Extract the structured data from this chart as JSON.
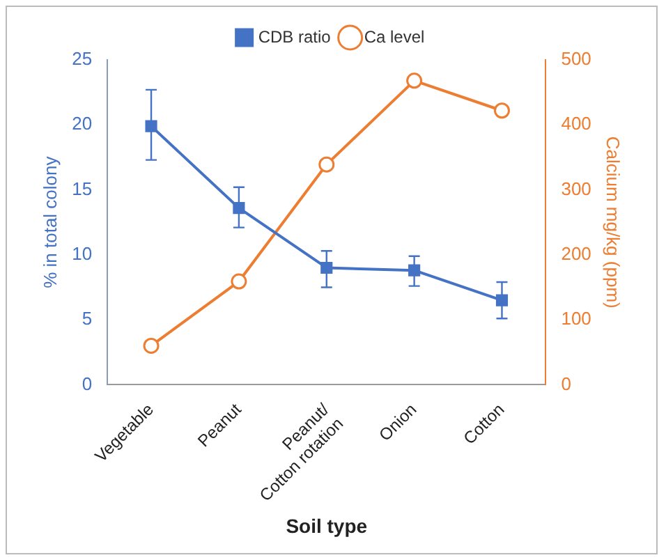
{
  "chart_data": {
    "type": "line",
    "xlabel": "Soil type",
    "ylabel": "% in total colony",
    "y2label": "Calcium mg/kg (ppm)",
    "categories": [
      "Vegetable",
      "Peanut",
      "Peanut/ Cotton rotation",
      "Onion",
      "Cotton"
    ],
    "series": [
      {
        "name": "CDB ratio",
        "color": "#4472c4",
        "marker": "square",
        "values": [
          19.9,
          13.6,
          9.0,
          8.8,
          6.5
        ],
        "errors": [
          [
            17.3,
            22.7
          ],
          [
            12.1,
            15.2
          ],
          [
            7.5,
            10.3
          ],
          [
            7.6,
            9.9
          ],
          [
            5.1,
            7.9
          ]
        ]
      },
      {
        "name": "Ca level",
        "color": "#ed7d31",
        "marker": "circle",
        "axis": "y2",
        "values": [
          60,
          159,
          339,
          468,
          422
        ]
      }
    ],
    "ylim": [
      0,
      25
    ],
    "yticks": [
      0,
      5,
      10,
      15,
      20,
      25
    ],
    "y2lim": [
      0,
      500
    ],
    "y2ticks": [
      0,
      100,
      200,
      300,
      400,
      500
    ],
    "grid": false,
    "legend": "top",
    "line_style": "solid"
  }
}
